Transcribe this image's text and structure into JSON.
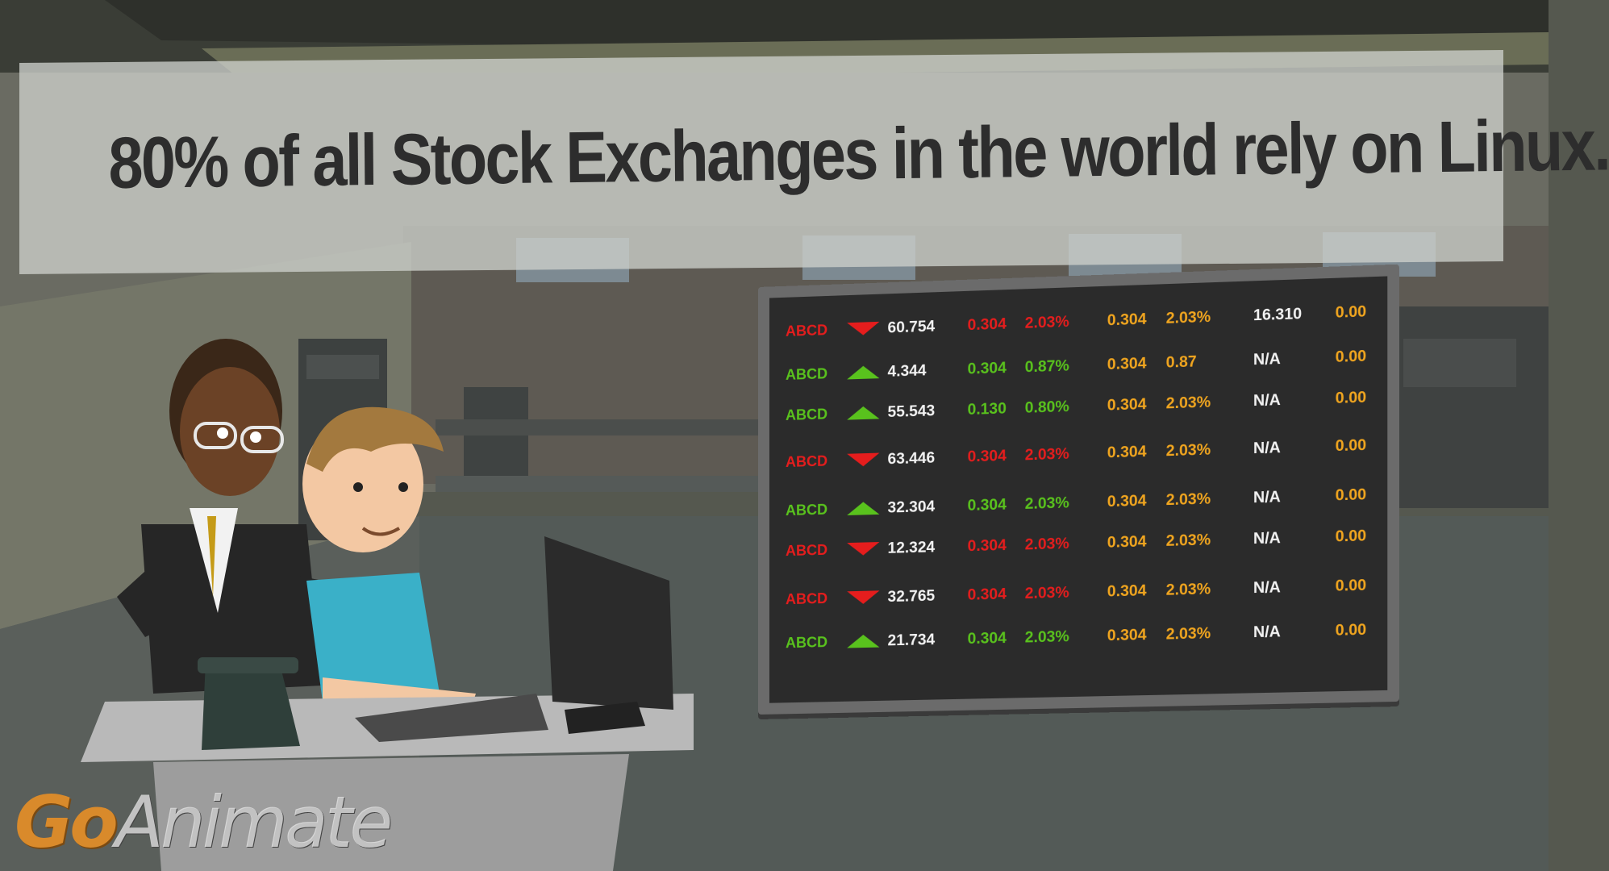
{
  "title": "80% of all Stock Exchanges in the world rely on Linux.",
  "logo": {
    "part1": "Go",
    "part2": "Animate"
  },
  "colors": {
    "up": "#59c21d",
    "down": "#e51d1d",
    "neutral": "#f0a51f",
    "text": "#f2f2f2"
  },
  "ticker": [
    {
      "symbol": "ABCD",
      "direction": "down",
      "price": "60.754",
      "change": "0.304",
      "change_pct": "2.03%",
      "open": "0.304",
      "open_pct": "2.03%",
      "extra": "16.310",
      "last": "0.00"
    },
    {
      "symbol": "ABCD",
      "direction": "up",
      "price": "4.344",
      "change": "0.304",
      "change_pct": "0.87%",
      "open": "0.304",
      "open_pct": "0.87",
      "extra": "N/A",
      "last": "0.00"
    },
    {
      "symbol": "ABCD",
      "direction": "up",
      "price": "55.543",
      "change": "0.130",
      "change_pct": "0.80%",
      "open": "0.304",
      "open_pct": "2.03%",
      "extra": "N/A",
      "last": "0.00"
    },
    {
      "symbol": "ABCD",
      "direction": "down",
      "price": "63.446",
      "change": "0.304",
      "change_pct": "2.03%",
      "open": "0.304",
      "open_pct": "2.03%",
      "extra": "N/A",
      "last": "0.00"
    },
    {
      "symbol": "ABCD",
      "direction": "up",
      "price": "32.304",
      "change": "0.304",
      "change_pct": "2.03%",
      "open": "0.304",
      "open_pct": "2.03%",
      "extra": "N/A",
      "last": "0.00"
    },
    {
      "symbol": "ABCD",
      "direction": "down",
      "price": "12.324",
      "change": "0.304",
      "change_pct": "2.03%",
      "open": "0.304",
      "open_pct": "2.03%",
      "extra": "N/A",
      "last": "0.00"
    },
    {
      "symbol": "ABCD",
      "direction": "down",
      "price": "32.765",
      "change": "0.304",
      "change_pct": "2.03%",
      "open": "0.304",
      "open_pct": "2.03%",
      "extra": "N/A",
      "last": "0.00"
    },
    {
      "symbol": "ABCD",
      "direction": "up",
      "price": "21.734",
      "change": "0.304",
      "change_pct": "2.03%",
      "open": "0.304",
      "open_pct": "2.03%",
      "extra": "N/A",
      "last": "0.00"
    }
  ]
}
